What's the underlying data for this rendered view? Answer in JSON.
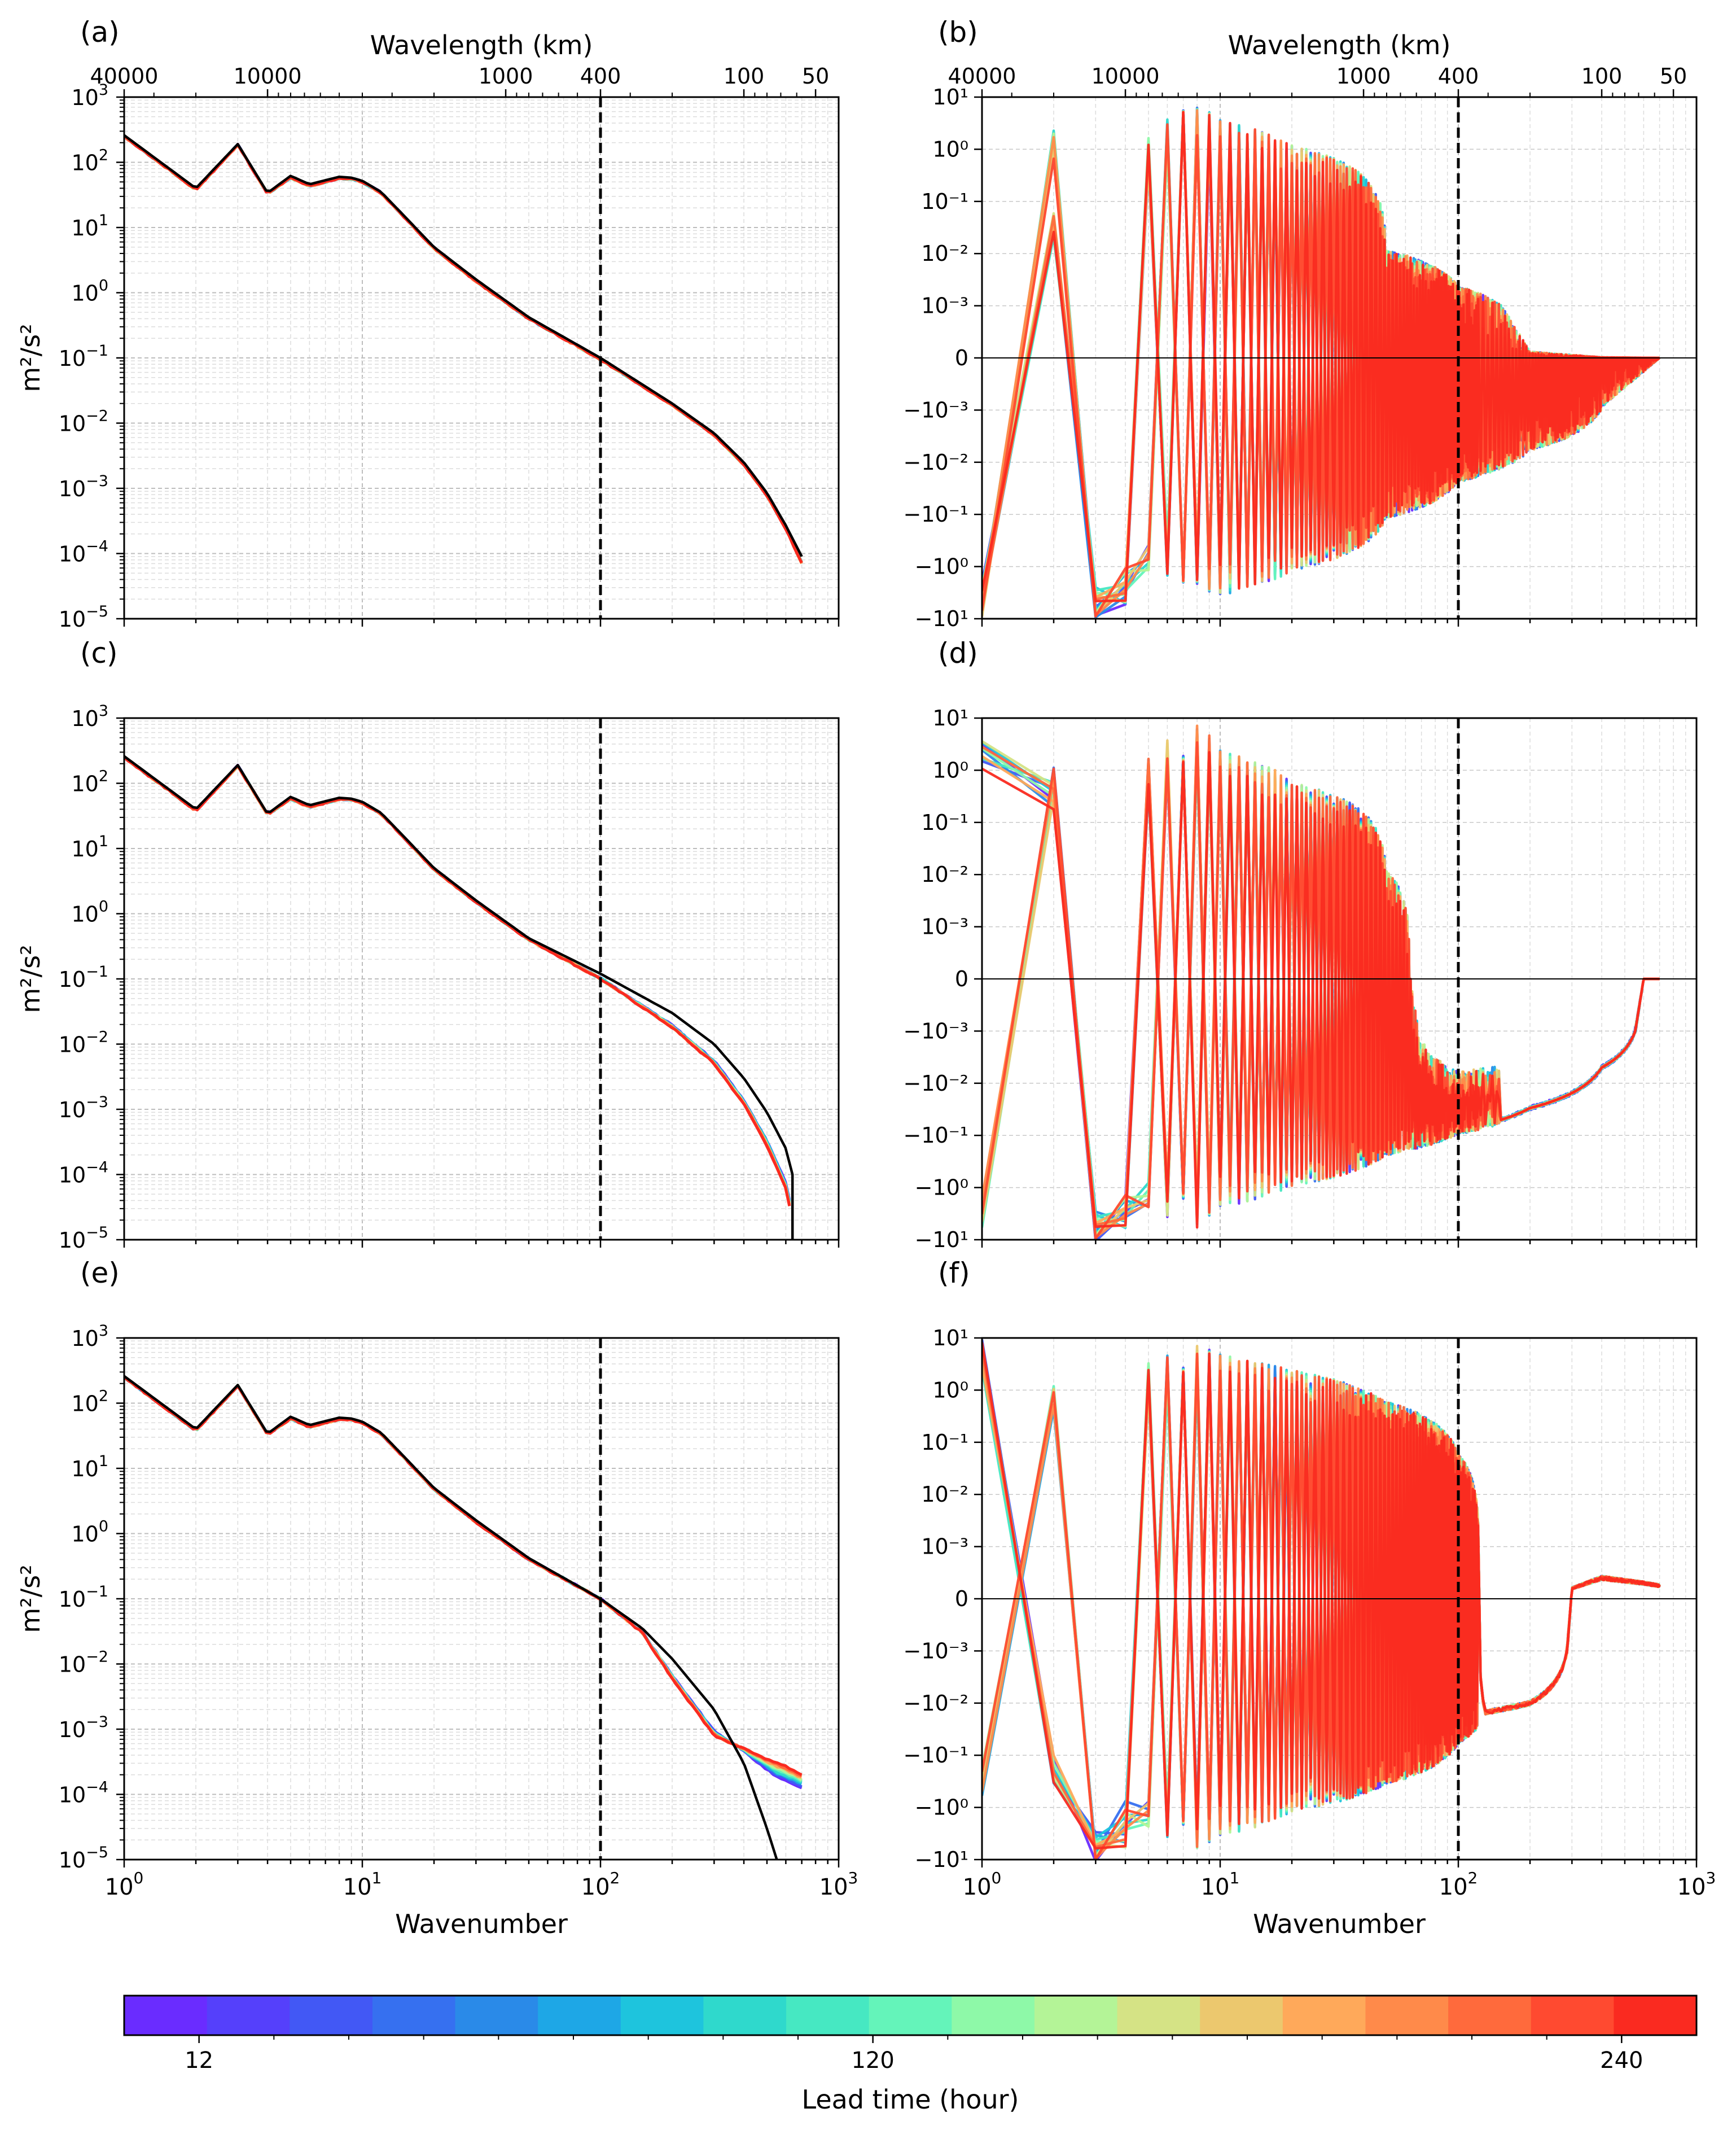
{
  "figure": {
    "colorbar": {
      "label": "Lead time (hour)",
      "tick_labels": [
        "12",
        "120",
        "240"
      ],
      "colors": [
        "#6a2cff",
        "#5540fb",
        "#4258f5",
        "#3670f0",
        "#2a8ae8",
        "#1ea7e6",
        "#1ec4dd",
        "#2fd9cc",
        "#46e8c2",
        "#64f4ba",
        "#8ef9a8",
        "#b4f497",
        "#d5e385",
        "#ecc86e",
        "#ffa95a",
        "#ff8a4a",
        "#ff6a3c",
        "#ff4a30",
        "#fa2a20"
      ],
      "tick_values": [
        12,
        120,
        240
      ],
      "range": [
        0,
        252
      ]
    },
    "dashed_line_wavenumber": 100,
    "reference_color": "#000000",
    "top_axis_label": "Wavelength (km)",
    "top_tick_labels": [
      "40000",
      "10000",
      "1000",
      "400",
      "100",
      "50"
    ],
    "x_axis_label": "Wavenumber",
    "x_tick_labels": [
      "10",
      "10",
      "10",
      "10"
    ],
    "x_tick_exponents": [
      "0",
      "1",
      "2",
      "3"
    ]
  },
  "chart_data": [
    {
      "panel": "(a)",
      "type": "line",
      "xscale": "log",
      "yscale": "log",
      "xlim": [
        1,
        1000
      ],
      "ylim": [
        1e-05,
        1000
      ],
      "ylabel": "m²/s²",
      "y_tick_exponents": [
        "-5",
        "-4",
        "-3",
        "-2",
        "-1",
        "0",
        "1",
        "2",
        "3"
      ],
      "reference_series": {
        "x": [
          1,
          2,
          3,
          4,
          5,
          6,
          8,
          9,
          10,
          12,
          15,
          20,
          30,
          50,
          100,
          200,
          300,
          400,
          500,
          600,
          700
        ],
        "y": [
          260,
          40,
          190,
          34,
          62,
          46,
          60,
          58,
          52,
          35,
          15,
          5,
          1.6,
          0.42,
          0.1,
          0.02,
          0.007,
          0.0025,
          0.00085,
          0.00027,
          9e-05
        ]
      },
      "forecast_summary": {
        "lead_times_hours": [
          12,
          240
        ],
        "x": [
          1,
          2,
          3,
          4,
          5,
          6,
          8,
          9,
          10,
          12,
          15,
          20,
          30,
          50,
          100,
          200,
          300,
          400,
          500,
          600,
          700
        ],
        "y": [
          250,
          38,
          185,
          33,
          58,
          43,
          57,
          56,
          50,
          34,
          14.5,
          4.8,
          1.5,
          0.4,
          0.095,
          0.019,
          0.0066,
          0.0023,
          0.00078,
          0.00024,
          7e-05
        ]
      }
    },
    {
      "panel": "(b)",
      "type": "line",
      "xscale": "log",
      "yscale": "symlog",
      "xlim": [
        1,
        1000
      ],
      "ylim": [
        -10,
        10
      ],
      "linthresh": 0.001,
      "y_tick_labels": [
        "10¹",
        "10⁰",
        "10⁻¹",
        "10⁻²",
        "10⁻³",
        "0",
        "−10⁻³",
        "−10⁻²",
        "−10⁻¹",
        "−10⁰",
        "−10¹"
      ],
      "description_of_series": "difference spectra for lead times 12–240 h; alternating sign at low wavenumbers, converging to 0 near wavenumber 700",
      "envelope": {
        "x": [
          1,
          2,
          3,
          5,
          8,
          10,
          20,
          50,
          100,
          200,
          400,
          700
        ],
        "upper": [
          -5,
          2,
          -8,
          1.5,
          6,
          3,
          1,
          0.01,
          0.002,
          0.0001,
          1e-05,
          0
        ],
        "lower": [
          -8,
          0.05,
          -9,
          -1,
          -2,
          -3,
          -1,
          -0.1,
          -0.02,
          -0.005,
          -0.0008,
          0
        ]
      }
    },
    {
      "panel": "(c)",
      "type": "line",
      "xscale": "log",
      "yscale": "log",
      "xlim": [
        1,
        1000
      ],
      "ylim": [
        1e-05,
        1000
      ],
      "ylabel": "m²/s²",
      "reference_series": {
        "x": [
          1,
          2,
          3,
          4,
          5,
          6,
          8,
          9,
          10,
          12,
          15,
          20,
          30,
          50,
          100,
          200,
          300,
          400,
          500,
          600,
          640
        ],
        "y": [
          260,
          40,
          190,
          34,
          62,
          46,
          60,
          58,
          52,
          35,
          15,
          5,
          1.6,
          0.42,
          0.12,
          0.03,
          0.01,
          0.003,
          0.0009,
          0.00025,
          0.0001
        ]
      },
      "forecast_summary": {
        "x": [
          1,
          2,
          3,
          4,
          5,
          6,
          8,
          9,
          10,
          12,
          15,
          20,
          30,
          50,
          100,
          200,
          300,
          400,
          500,
          600,
          640
        ],
        "y": [
          250,
          38,
          185,
          33,
          58,
          43,
          57,
          56,
          50,
          34,
          14.5,
          4.8,
          1.5,
          0.4,
          0.1,
          0.018,
          0.005,
          0.0012,
          0.00028,
          6e-05,
          2e-05
        ]
      }
    },
    {
      "panel": "(d)",
      "type": "line",
      "xscale": "log",
      "yscale": "symlog",
      "xlim": [
        1,
        1000
      ],
      "ylim": [
        -10,
        10
      ],
      "linthresh": 0.001,
      "envelope": {
        "x": [
          1,
          2,
          3,
          5,
          8,
          10,
          20,
          50,
          100,
          200,
          400,
          600,
          700
        ],
        "upper": [
          3,
          1,
          -9,
          1.5,
          6,
          2,
          0.5,
          0.01,
          -0.02,
          -0.01,
          -0.002,
          0,
          0
        ],
        "lower": [
          -5,
          0.5,
          -9,
          -2,
          -5,
          -2,
          -0.8,
          -0.2,
          -0.08,
          -0.03,
          -0.005,
          0,
          0
        ]
      }
    },
    {
      "panel": "(e)",
      "type": "line",
      "xscale": "log",
      "yscale": "log",
      "xlim": [
        1,
        1000
      ],
      "ylim": [
        1e-05,
        1000
      ],
      "ylabel": "m²/s²",
      "reference_series": {
        "x": [
          1,
          2,
          3,
          4,
          5,
          6,
          8,
          9,
          10,
          12,
          15,
          20,
          30,
          50,
          100,
          150,
          200,
          300,
          400,
          500,
          550
        ],
        "y": [
          260,
          40,
          190,
          34,
          62,
          46,
          60,
          58,
          52,
          35,
          15,
          5,
          1.6,
          0.42,
          0.1,
          0.035,
          0.012,
          0.002,
          0.0003,
          3e-05,
          1e-05
        ]
      },
      "forecast_summary": {
        "x": [
          1,
          2,
          3,
          4,
          5,
          6,
          8,
          9,
          10,
          12,
          15,
          20,
          30,
          50,
          100,
          150,
          200,
          300,
          400,
          500,
          600,
          700
        ],
        "y": [
          250,
          38,
          185,
          33,
          58,
          43,
          57,
          56,
          50,
          34,
          14.5,
          4.8,
          1.5,
          0.4,
          0.1,
          0.03,
          0.006,
          0.0008,
          0.0005,
          0.00035,
          0.00027,
          0.0002
        ]
      }
    },
    {
      "panel": "(f)",
      "type": "line",
      "xscale": "log",
      "yscale": "symlog",
      "xlim": [
        1,
        1000
      ],
      "ylim": [
        -10,
        10
      ],
      "linthresh": 0.001,
      "envelope": {
        "x": [
          1,
          2,
          3,
          5,
          8,
          10,
          20,
          50,
          100,
          130,
          200,
          300,
          400,
          600,
          700
        ],
        "upper": [
          8,
          1,
          -9,
          3,
          6,
          4,
          2,
          0.5,
          0.05,
          -0.015,
          -0.01,
          0.0002,
          0.0004,
          0.0003,
          0.00025
        ],
        "lower": [
          -0.5,
          -0.3,
          -9,
          -2,
          -5,
          -3,
          -1,
          -0.3,
          -0.05,
          -0.015,
          -0.01,
          0.0002,
          0.0004,
          0.0003,
          0.00025
        ]
      }
    }
  ]
}
